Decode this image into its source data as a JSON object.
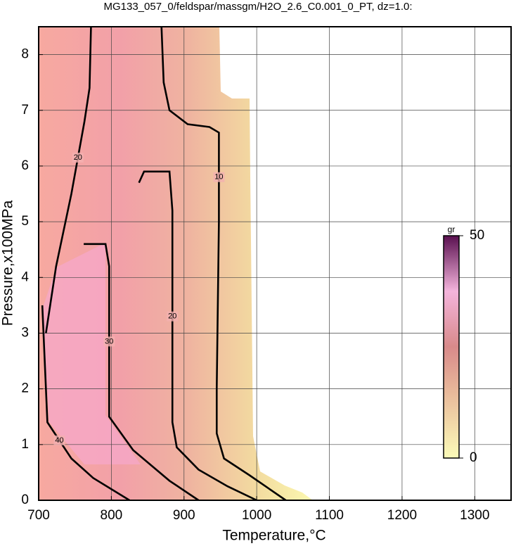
{
  "chart_data": {
    "type": "contour",
    "title": "MG133_057_0/feldspar/massgm/H2O_2.6_C0.001_0_PT, dz=1.0:",
    "x_label": "Temperature,°C",
    "y_label": "Pressure,x100MPa",
    "xlim": [
      700,
      1350
    ],
    "ylim": [
      0,
      8.5
    ],
    "xticks": [
      700,
      800,
      900,
      1000,
      1100,
      1200,
      1300
    ],
    "yticks": [
      0,
      1,
      2,
      3,
      4,
      5,
      6,
      7,
      8
    ],
    "grid": true,
    "series": [
      {
        "name": "10",
        "color": "#000000",
        "x": [
          869,
          872,
          880,
          905,
          935,
          948,
          948,
          946,
          945,
          945,
          955,
          990,
          1040
        ],
        "y": [
          8.5,
          7.5,
          7.0,
          6.75,
          6.7,
          6.6,
          5.0,
          3.0,
          2.0,
          1.2,
          0.75,
          0.45,
          0
        ]
      },
      {
        "name": "20",
        "color": "#000000",
        "x": [
          772,
          770,
          763,
          745,
          724,
          710
        ],
        "y": [
          8.5,
          7.4,
          6.8,
          5.5,
          4.2,
          3.0
        ]
      },
      {
        "name": "20",
        "color": "#000000",
        "x": [
          838,
          845,
          880,
          884,
          884,
          890,
          920,
          960,
          1000
        ],
        "y": [
          5.7,
          5.9,
          5.9,
          5.2,
          1.4,
          0.95,
          0.55,
          0.25,
          0
        ]
      },
      {
        "name": "30",
        "color": "#000000",
        "x": [
          762,
          792,
          797,
          797,
          830,
          880,
          920
        ],
        "y": [
          4.6,
          4.6,
          4.2,
          1.5,
          0.9,
          0.35,
          0
        ]
      },
      {
        "name": "40",
        "color": "#000000",
        "x": [
          705,
          712,
          745,
          775,
          825
        ],
        "y": [
          3.5,
          1.4,
          0.75,
          0.4,
          0
        ]
      }
    ],
    "colorbar": {
      "label": "gr",
      "clim": [
        0,
        50
      ],
      "ticks": [
        0,
        50
      ]
    }
  }
}
